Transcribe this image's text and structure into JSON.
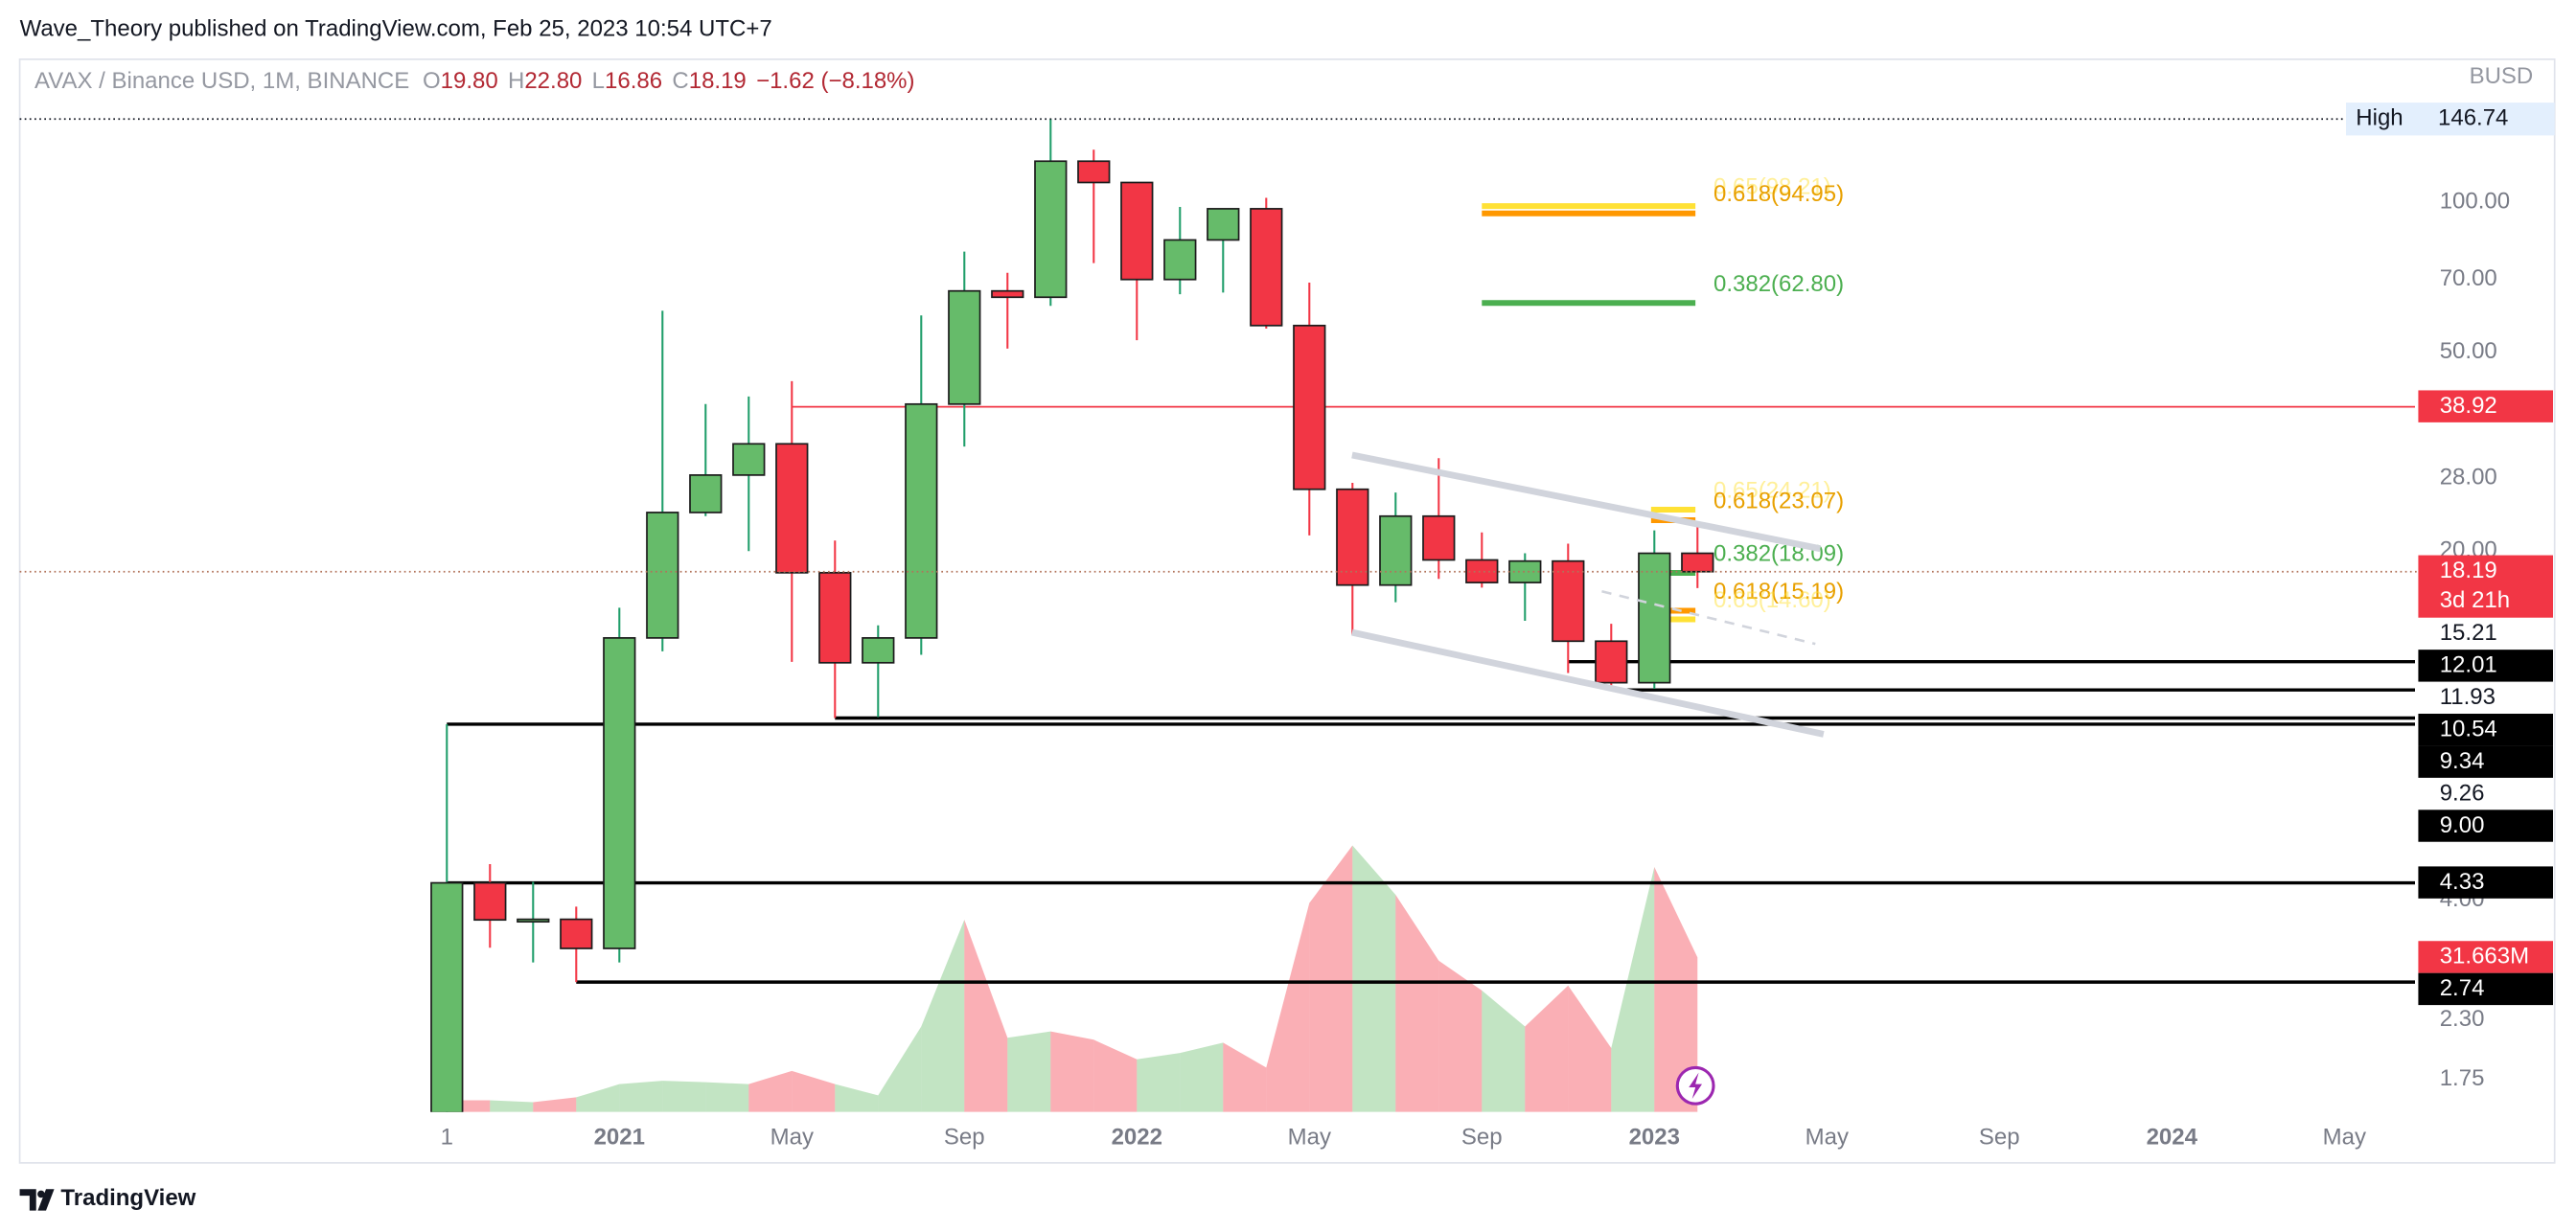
{
  "header": {
    "published": "Wave_Theory published on TradingView.com, Feb 25, 2023 10:54 UTC+7",
    "symbol": "AVAX / Binance USD, 1M, BINANCE",
    "ohlc": [
      {
        "key": "O",
        "value": "19.80"
      },
      {
        "key": "H",
        "value": "22.80"
      },
      {
        "key": "L",
        "value": "16.86"
      },
      {
        "key": "C",
        "value": "18.19"
      }
    ],
    "change": "−1.62 (−8.18%)"
  },
  "chart_data": {
    "type": "candlestick",
    "currency": "BUSD",
    "log_scale": true,
    "up_color": "#66bb6a",
    "down_color": "#f23645",
    "categories": [
      "2020-09",
      "2020-10",
      "2020-11",
      "2020-12",
      "2021-01",
      "2021-02",
      "2021-03",
      "2021-04",
      "2021-05",
      "2021-06",
      "2021-07",
      "2021-08",
      "2021-09",
      "2021-10",
      "2021-11",
      "2021-12",
      "2022-01",
      "2022-02",
      "2022-03",
      "2022-04",
      "2022-05",
      "2022-06",
      "2022-07",
      "2022-08",
      "2022-09",
      "2022-10",
      "2022-11",
      "2022-12",
      "2023-01",
      "2023-02"
    ],
    "ohlc": {
      "open": [
        1.5,
        4.33,
        3.65,
        3.66,
        3.2,
        13.4,
        23.9,
        28.4,
        32.8,
        18.1,
        11.95,
        13.4,
        39.4,
        66.4,
        64.5,
        120.8,
        109.5,
        70,
        84,
        97,
        56.6,
        26.6,
        17.1,
        23.5,
        19.2,
        17.3,
        19.1,
        13.2,
        10.9,
        19.8
      ],
      "high": [
        9.0,
        4.72,
        4.35,
        3.88,
        15.4,
        60.6,
        39.4,
        40.8,
        43.8,
        21,
        14.2,
        59.3,
        79.6,
        72.2,
        146.74,
        127.4,
        109.5,
        97.8,
        97,
        102,
        69,
        27.4,
        26.2,
        30.7,
        21.8,
        19.8,
        20.7,
        14.3,
        22.0,
        22.8
      ],
      "low": [
        1.5,
        3.21,
        3.0,
        2.74,
        3.0,
        12.6,
        23.5,
        20,
        12.0,
        9.26,
        9.3,
        12.4,
        32.4,
        50.9,
        62,
        75.5,
        52.9,
        65.4,
        65.9,
        55.8,
        21.5,
        13.6,
        15.8,
        17.6,
        16.9,
        14.5,
        11.4,
        10.5,
        10.6,
        16.86
      ],
      "close": [
        4.33,
        3.65,
        3.66,
        3.2,
        13.4,
        23.9,
        28.4,
        32.8,
        18.1,
        11.95,
        13.4,
        39.4,
        66.4,
        64.5,
        120.8,
        109.5,
        70,
        84,
        97,
        56.6,
        26.6,
        17.1,
        23.5,
        19.2,
        17.3,
        19.1,
        13.2,
        10.9,
        19.8,
        18.19
      ]
    },
    "volume": {
      "values": [
        2400000,
        2400000,
        2000000,
        3000000,
        5700000,
        6400000,
        6100000,
        5700000,
        8400000,
        5700000,
        3400000,
        17500000,
        39400000,
        15200000,
        16500000,
        14800000,
        10800000,
        12100000,
        14200000,
        9100000,
        42800000,
        54600000,
        44500000,
        31000000,
        24900000,
        17500000,
        25900000,
        13100000,
        50200000,
        31663000
      ],
      "value_labels": [
        null,
        null,
        null,
        null,
        null,
        null,
        null,
        null,
        null,
        null,
        null,
        null,
        null,
        null,
        null,
        null,
        null,
        null,
        null,
        null,
        null,
        null,
        null,
        null,
        null,
        null,
        null,
        null,
        null,
        "31.663M"
      ],
      "ylim": [
        0,
        215000000
      ]
    },
    "ylim": [
      1.505,
      190.4
    ],
    "yticks": [
      1.75,
      {
        "value": 2.3,
        "label": "2.30"
      },
      {
        "value": 4,
        "label": "4.00"
      },
      {
        "value": 20,
        "label": "20.00"
      },
      {
        "value": 28,
        "label": "28.00"
      },
      {
        "value": 50,
        "label": "50.00"
      },
      {
        "value": 70,
        "label": "70.00"
      },
      {
        "value": 100,
        "label": "100.00"
      }
    ],
    "xticks": [
      {
        "value": "2020-09",
        "label": "1"
      },
      {
        "value": "2021-01",
        "label": "2021"
      },
      {
        "value": "2021-05",
        "label": "May"
      },
      {
        "value": "2021-09",
        "label": "Sep"
      },
      {
        "value": "2022-01",
        "label": "2022"
      },
      {
        "value": "2022-05",
        "label": "May"
      },
      {
        "value": "2022-09",
        "label": "Sep"
      },
      {
        "value": "2023-01",
        "label": "2023"
      },
      {
        "value": "2023-05",
        "label": "May"
      },
      {
        "value": "2023-09",
        "label": "Sep"
      },
      {
        "value": "2024-01",
        "label": "2024"
      },
      {
        "value": "2024-05",
        "label": "May"
      }
    ],
    "high_marker": {
      "label": "High",
      "value": 146.74
    },
    "last_price": 18.19,
    "countdown": "3d 21h",
    "price_levels": {
      "values": [
        38.92,
        15.21,
        12.01,
        11.93,
        10.54,
        9.34,
        9.26,
        9.0,
        4.33,
        2.74
      ],
      "value_labels": [
        "38.92",
        "15.21",
        "12.01",
        "11.93",
        "10.54",
        "9.34",
        "9.26",
        "9.00",
        "4.33",
        "2.74"
      ],
      "styles": [
        "red",
        "plain",
        "box",
        "plain",
        "box",
        "box",
        "plain",
        "box",
        "box",
        "box"
      ]
    },
    "fib_levels": [
      {
        "values": [
          98.21,
          94.95,
          62.8
        ],
        "value_labels": [
          "0.65(98.21)",
          "0.618(94.95)",
          "0.382(62.80)"
        ],
        "colors": [
          "#ffe135",
          "#ff9800",
          "#4caf50"
        ]
      },
      {
        "values": [
          24.21,
          23.07,
          18.09,
          15.19,
          14.6
        ],
        "value_labels": [
          "0.65(24.21)",
          "0.618(23.07)",
          "0.382(18.09)",
          "0.618(15.19)",
          "0.65(14.60)"
        ],
        "colors": [
          "#ffe135",
          "#ff9800",
          "#4caf50",
          "#ff9800",
          "#ffe135"
        ]
      }
    ]
  },
  "footer": {
    "brand": "TradingView"
  }
}
